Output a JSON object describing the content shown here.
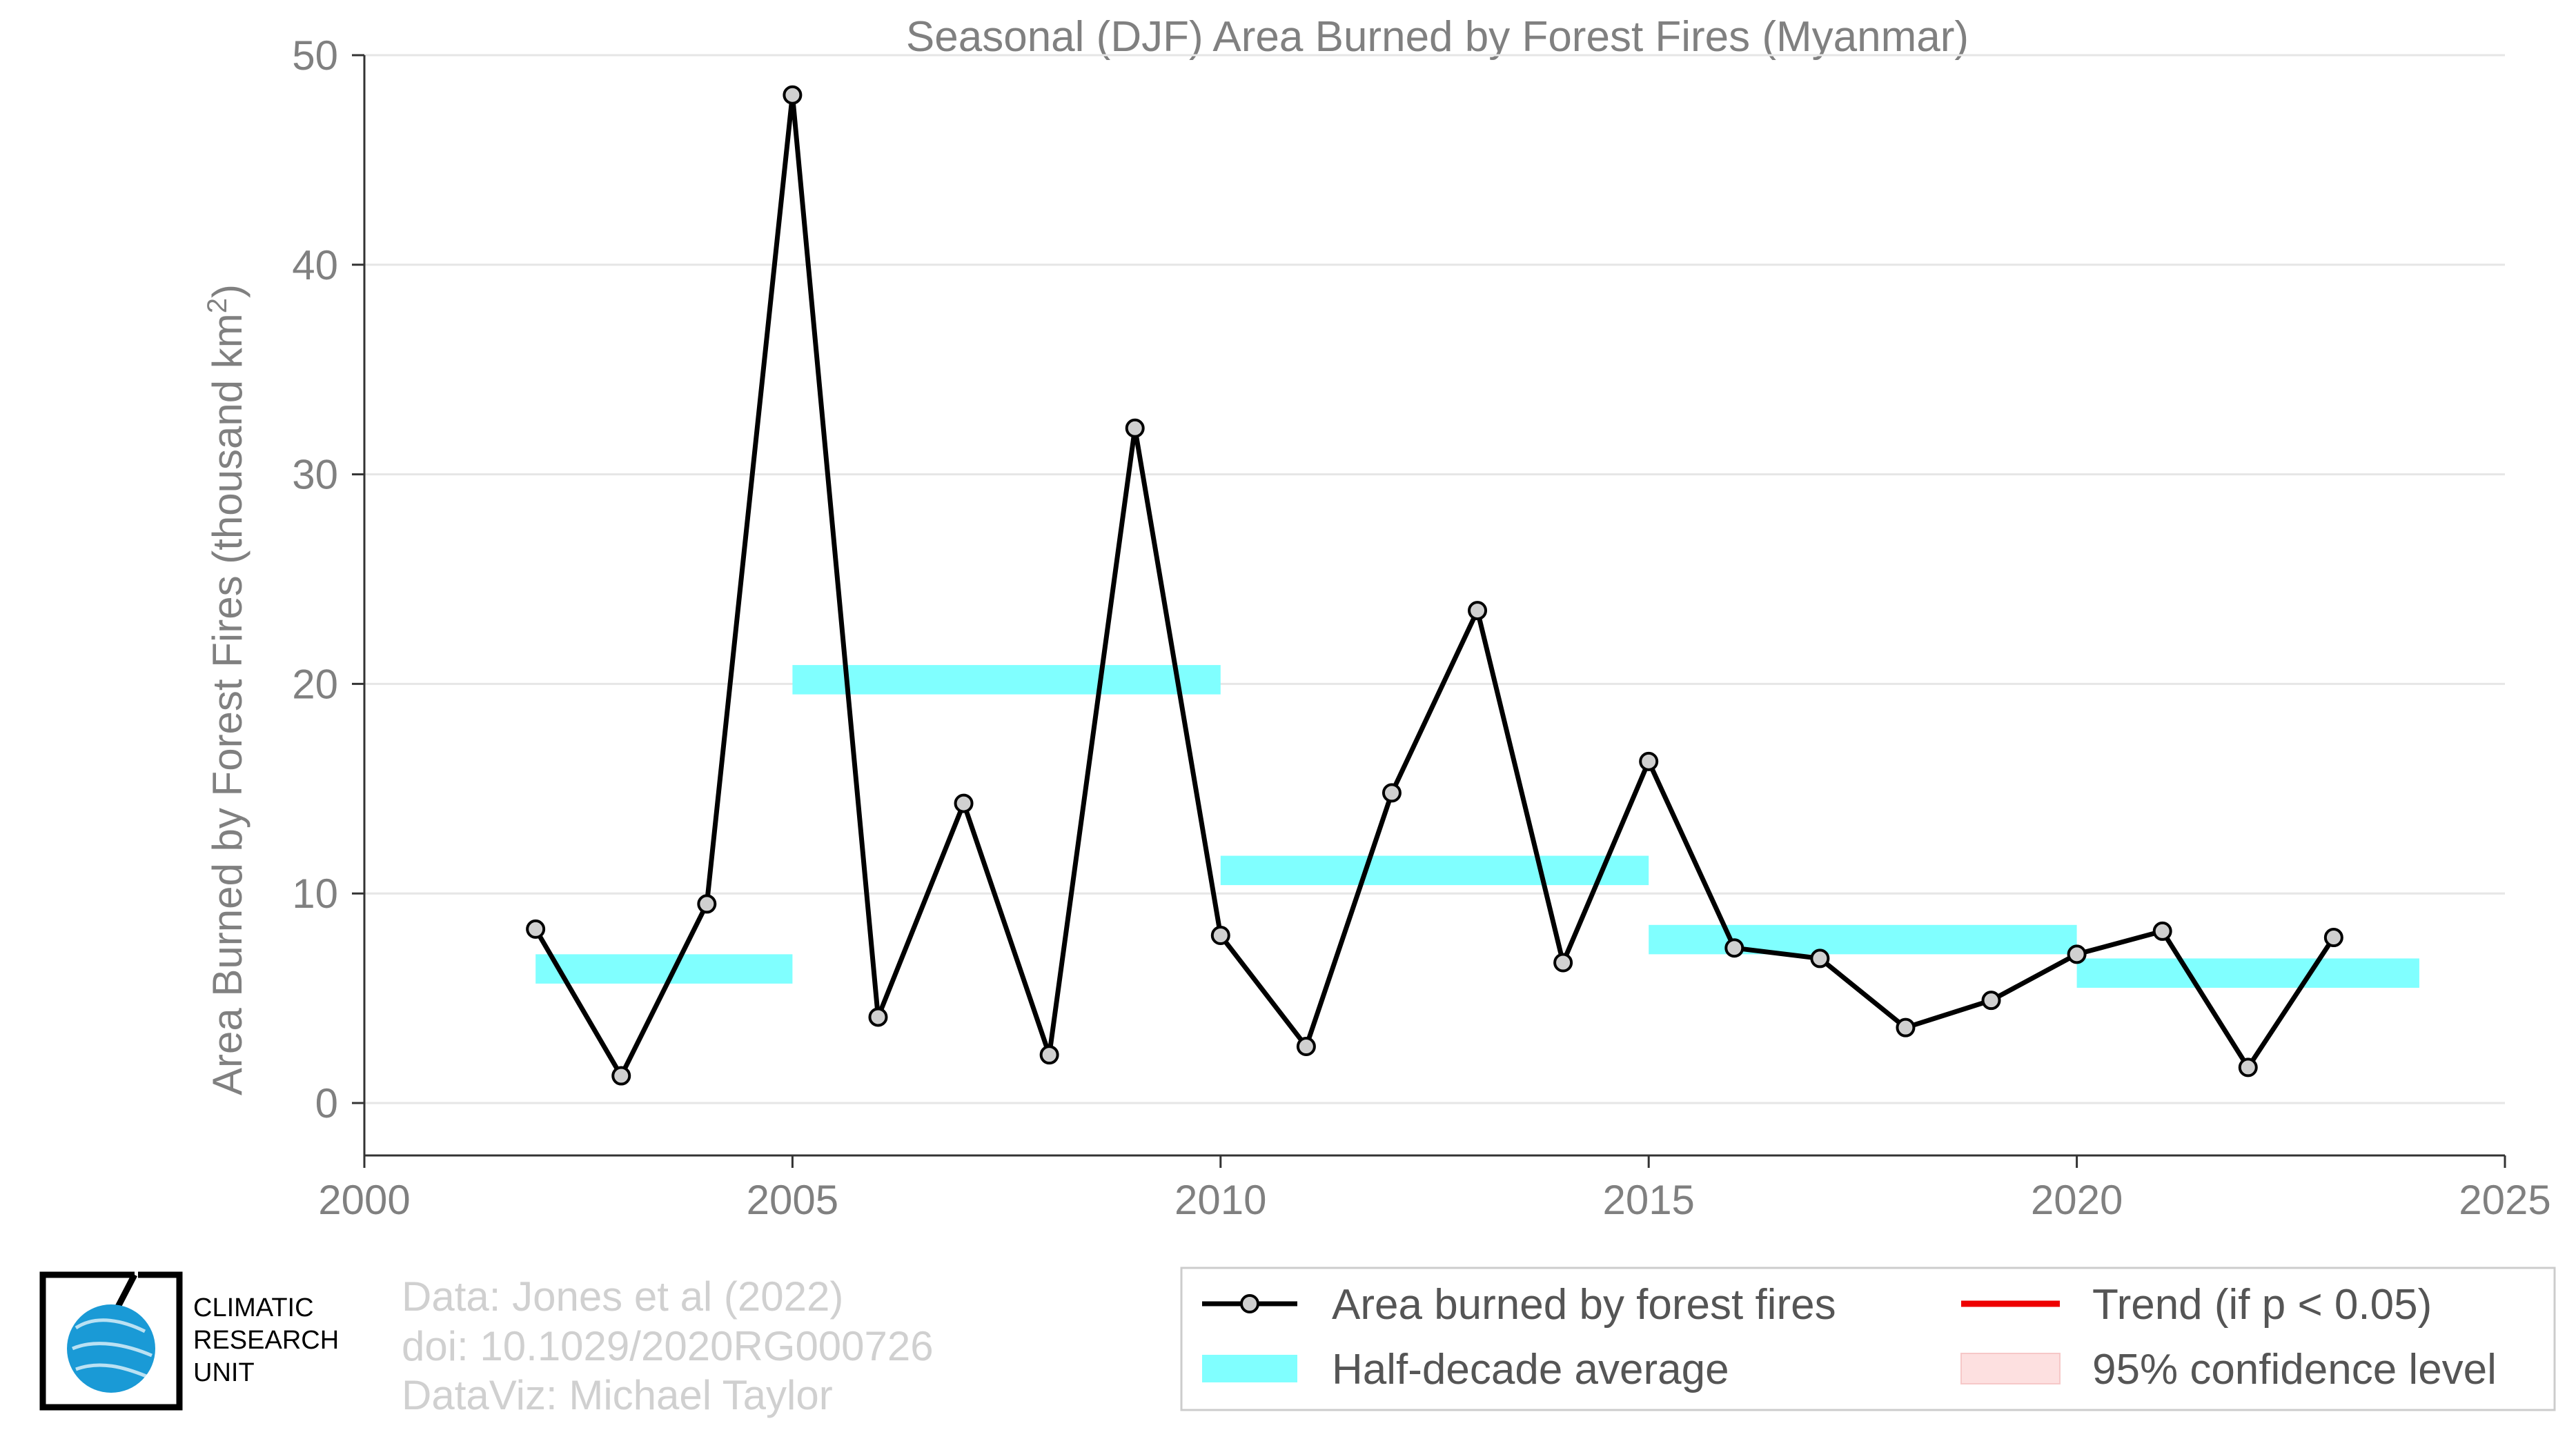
{
  "chart_data": {
    "type": "line",
    "title": "Seasonal (DJF) Area Burned by Forest Fires (Myanmar)",
    "xlabel": "",
    "ylabel_main": "Area Burned by Forest Fires (thousand km",
    "ylabel_sup": "2",
    "ylabel_close": ")",
    "xlim": [
      2000,
      2025
    ],
    "ylim": [
      -2.5,
      50
    ],
    "xticks": [
      2000,
      2005,
      2010,
      2015,
      2020,
      2025
    ],
    "yticks": [
      0,
      10,
      20,
      30,
      40,
      50
    ],
    "grid": "horizontal",
    "series": [
      {
        "name": "Area burned by forest fires",
        "color": "#000000",
        "marker_color": "#d0d0d0",
        "points": [
          {
            "x": 2002,
            "y": 8.3
          },
          {
            "x": 2003,
            "y": 1.3
          },
          {
            "x": 2004,
            "y": 9.5
          },
          {
            "x": 2005,
            "y": 48.1
          },
          {
            "x": 2006,
            "y": 4.1
          },
          {
            "x": 2007,
            "y": 14.3
          },
          {
            "x": 2008,
            "y": 2.3
          },
          {
            "x": 2009,
            "y": 32.2
          },
          {
            "x": 2010,
            "y": 8.0
          },
          {
            "x": 2011,
            "y": 2.7
          },
          {
            "x": 2012,
            "y": 14.8
          },
          {
            "x": 2013,
            "y": 23.5
          },
          {
            "x": 2014,
            "y": 6.7
          },
          {
            "x": 2015,
            "y": 16.3
          },
          {
            "x": 2016,
            "y": 7.4
          },
          {
            "x": 2017,
            "y": 6.9
          },
          {
            "x": 2018,
            "y": 3.6
          },
          {
            "x": 2019,
            "y": 4.9
          },
          {
            "x": 2020,
            "y": 7.1
          },
          {
            "x": 2021,
            "y": 8.2
          },
          {
            "x": 2022,
            "y": 1.7
          },
          {
            "x": 2023,
            "y": 7.9
          }
        ]
      }
    ],
    "half_decade_average": {
      "name": "Half-decade average",
      "color": "#80ffff",
      "band_halfwidth": 0.7,
      "segments": [
        {
          "x0": 2002,
          "x1": 2005,
          "y": 6.4
        },
        {
          "x0": 2005,
          "x1": 2010,
          "y": 20.2
        },
        {
          "x0": 2010,
          "x1": 2015,
          "y": 11.1
        },
        {
          "x0": 2015,
          "x1": 2020,
          "y": 7.8
        },
        {
          "x0": 2020,
          "x1": 2024,
          "y": 6.2
        }
      ]
    },
    "legend": {
      "placement": "bottom-right",
      "items": [
        {
          "label": "Area burned by forest fires",
          "type": "line-marker",
          "color": "#000000"
        },
        {
          "label": "Trend (if p < 0.05)",
          "type": "line",
          "color": "#ee0000"
        },
        {
          "label": "Half-decade average",
          "type": "band",
          "color": "#80ffff"
        },
        {
          "label": "95% confidence level",
          "type": "band",
          "color": "#fde0e0"
        }
      ]
    }
  },
  "credits": {
    "line1": "Data: Jones et al (2022)",
    "line2": "doi: 10.1029/2020RG000726",
    "line3": "DataViz: Michael Taylor"
  },
  "logo": {
    "line1": "CLIMATIC",
    "line2": "RESEARCH",
    "line3": "UNIT",
    "color": "#1a9ad6"
  }
}
